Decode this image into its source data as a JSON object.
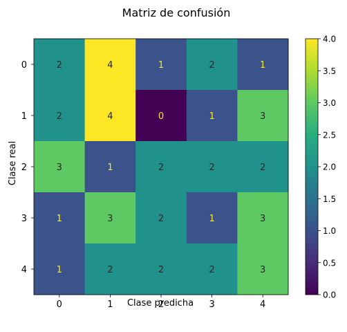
{
  "chart_data": {
    "type": "heatmap",
    "title": "Matriz de confusión",
    "xlabel": "Clase predicha",
    "ylabel": "Clase real",
    "x_categories": [
      "0",
      "1",
      "2",
      "3",
      "4"
    ],
    "y_categories": [
      "0",
      "1",
      "2",
      "3",
      "4"
    ],
    "values": [
      [
        2,
        4,
        1,
        2,
        1
      ],
      [
        2,
        4,
        0,
        1,
        3
      ],
      [
        3,
        1,
        2,
        2,
        2
      ],
      [
        1,
        3,
        2,
        1,
        3
      ],
      [
        1,
        2,
        2,
        2,
        3
      ]
    ],
    "colormap": "viridis",
    "colorbar": {
      "range": [
        0,
        4
      ],
      "ticks": [
        "0.0",
        "0.5",
        "1.0",
        "1.5",
        "2.0",
        "2.5",
        "3.0",
        "3.5",
        "4.0"
      ]
    },
    "colors": {
      "viridis_0": "#440154",
      "viridis_1": "#3b528b",
      "viridis_2": "#21918c",
      "viridis_3": "#5ec962",
      "viridis_4": "#fde725",
      "label_dark": "#262626",
      "label_light": "#fde725"
    }
  }
}
